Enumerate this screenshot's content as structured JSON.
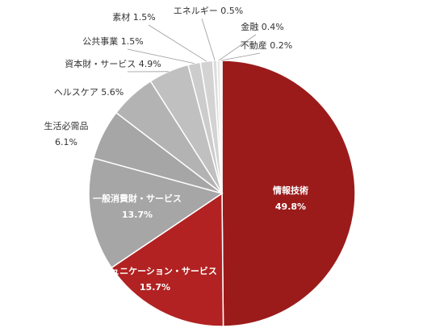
{
  "chart_data": {
    "type": "pie",
    "slices": [
      {
        "label": "情報技術",
        "value": 49.8,
        "pct_text": "49.8%",
        "color": "#9b1b1b"
      },
      {
        "label": "コミュニケーション・サービス",
        "value": 15.7,
        "pct_text": "15.7%",
        "color": "#b22222"
      },
      {
        "label": "一般消費財・サービス",
        "value": 13.7,
        "pct_text": "13.7%",
        "color": "#a6a6a6"
      },
      {
        "label": "生活必需品",
        "value": 6.1,
        "pct_text": "6.1%",
        "color": "#a6a6a6"
      },
      {
        "label": "ヘルスケア",
        "value": 5.6,
        "pct_text": "5.6%",
        "color": "#b3b3b3"
      },
      {
        "label": "資本財・サービス",
        "value": 4.9,
        "pct_text": "4.9%",
        "color": "#c0c0c0"
      },
      {
        "label": "公共事業",
        "value": 1.5,
        "pct_text": "1.5%",
        "color": "#cccccc"
      },
      {
        "label": "素材",
        "value": 1.5,
        "pct_text": "1.5%",
        "color": "#d3d3d3"
      },
      {
        "label": "エネルギー",
        "value": 0.5,
        "pct_text": "0.5%",
        "color": "#dddddd"
      },
      {
        "label": "金融",
        "value": 0.4,
        "pct_text": "0.4%",
        "color": "#e6e6e6"
      },
      {
        "label": "不動産",
        "value": 0.2,
        "pct_text": "0.2%",
        "color": "#eeeeee"
      }
    ]
  }
}
